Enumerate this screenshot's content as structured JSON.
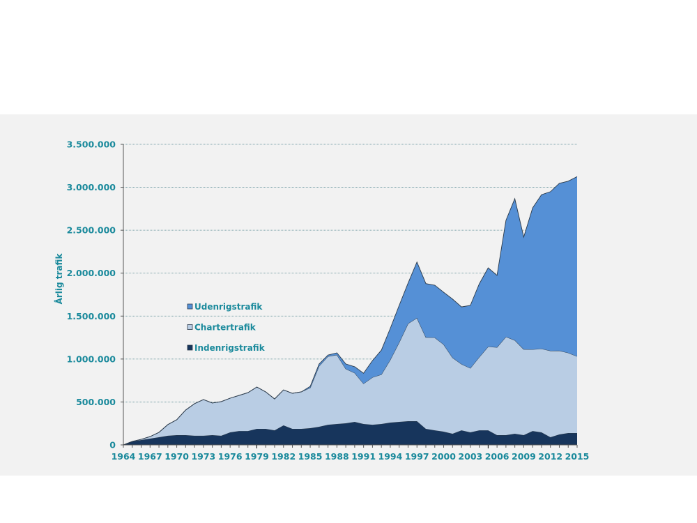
{
  "chart_data": {
    "type": "area",
    "stacked": true,
    "title": "",
    "xlabel": "",
    "ylabel": "Årlig trafik",
    "ylim": [
      0,
      3500000
    ],
    "yticks": [
      0,
      500000,
      1000000,
      1500000,
      2000000,
      2500000,
      3000000,
      3500000
    ],
    "ytick_labels": [
      "0",
      "500.000",
      "1.000.000",
      "1.500.000",
      "2.000.000",
      "2.500.000",
      "3.000.000",
      "3.500.000"
    ],
    "xlim": [
      1964,
      2015
    ],
    "xtick_labels": [
      "1964",
      "1967",
      "1970",
      "1973",
      "1976",
      "1979",
      "1982",
      "1985",
      "1988",
      "1991",
      "1994",
      "1997",
      "2000",
      "2003",
      "2006",
      "2009",
      "2012",
      "2015"
    ],
    "grid": true,
    "legend_position": "left-middle",
    "x": [
      1964,
      1965,
      1966,
      1967,
      1968,
      1969,
      1970,
      1971,
      1972,
      1973,
      1974,
      1975,
      1976,
      1977,
      1978,
      1979,
      1980,
      1981,
      1982,
      1983,
      1984,
      1985,
      1986,
      1987,
      1988,
      1989,
      1990,
      1991,
      1992,
      1993,
      1994,
      1995,
      1996,
      1997,
      1998,
      1999,
      2000,
      2001,
      2002,
      2003,
      2004,
      2005,
      2006,
      2007,
      2008,
      2009,
      2010,
      2011,
      2012,
      2013,
      2014,
      2015
    ],
    "series": [
      {
        "name": "Indenrigstrafik",
        "color": "#17355c",
        "values": [
          0,
          40000,
          57000,
          73000,
          89000,
          106000,
          114000,
          114000,
          106000,
          106000,
          114000,
          106000,
          146000,
          162000,
          162000,
          187000,
          187000,
          170000,
          227000,
          187000,
          187000,
          195000,
          211000,
          235000,
          244000,
          252000,
          268000,
          244000,
          235000,
          244000,
          260000,
          268000,
          276000,
          276000,
          187000,
          170000,
          154000,
          130000,
          170000,
          146000,
          170000,
          170000,
          114000,
          114000,
          130000,
          114000,
          162000,
          146000,
          89000,
          122000,
          138000,
          138000
        ]
      },
      {
        "name": "Chartertrafik",
        "color": "#b9cde4",
        "values": [
          0,
          0,
          8000,
          24000,
          57000,
          130000,
          179000,
          292000,
          374000,
          422000,
          374000,
          398000,
          398000,
          414000,
          446000,
          487000,
          430000,
          365000,
          414000,
          414000,
          430000,
          471000,
          707000,
          796000,
          804000,
          634000,
          569000,
          469000,
          552000,
          576000,
          731000,
          926000,
          1137000,
          1202000,
          1065000,
          1080000,
          1015000,
          886000,
          771000,
          747000,
          852000,
          974000,
          1023000,
          1145000,
          1089000,
          999000,
          950000,
          974000,
          1007000,
          975000,
          934000,
          893000
        ]
      },
      {
        "name": "Udenrigstrafik",
        "color": "#5590d6",
        "values": [
          0,
          0,
          0,
          0,
          0,
          0,
          0,
          0,
          0,
          0,
          0,
          0,
          0,
          0,
          0,
          0,
          0,
          0,
          0,
          0,
          0,
          16000,
          24000,
          16000,
          24000,
          57000,
          73000,
          122000,
          195000,
          284000,
          365000,
          430000,
          472000,
          651000,
          626000,
          610000,
          609000,
          682000,
          666000,
          731000,
          853000,
          918000,
          837000,
          1356000,
          1648000,
          1307000,
          1648000,
          1794000,
          1853000,
          1949000,
          1999000,
          2093000
        ]
      }
    ]
  }
}
